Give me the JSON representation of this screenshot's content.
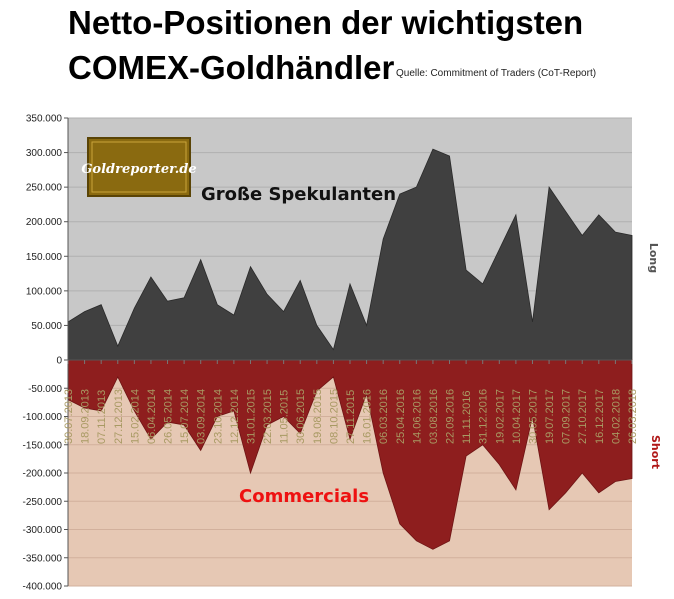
{
  "header": {
    "title_line1": "Netto-Positionen der wichtigsten",
    "title_line2": "COMEX-Goldhändler",
    "source": "Quelle: Commitment of Traders (CoT-Report)"
  },
  "logo": {
    "text": "Goldreporter.de"
  },
  "colors": {
    "long_plot_bg": "#c8c8c8",
    "long_area": "#404040",
    "short_plot_bg": "#e6c8b4",
    "short_area": "#8e1e1e",
    "short_label": "#b01818",
    "comm_label": "#ee1111",
    "x_tick": "#a89a63"
  },
  "chart_data": {
    "type": "area",
    "title": "Netto-Positionen der wichtigsten COMEX-Goldhändler",
    "subtitle": "Quelle: Commitment of Traders (CoT-Report)",
    "xlabel": "",
    "grid": true,
    "x_tick_labels": [
      "30.07.2013",
      "18.09.2013",
      "07.11.2013",
      "27.12.2013",
      "15.02.2014",
      "06.04.2014",
      "26.05.2014",
      "15.07.2014",
      "03.09.2014",
      "23.10.2014",
      "12.12.2014",
      "31.01.2015",
      "22.03.2015",
      "11.05.2015",
      "30.06.2015",
      "19.08.2015",
      "08.10.2015",
      "27.11.2015",
      "16.01.2016",
      "06.03.2016",
      "25.04.2016",
      "14.06.2016",
      "03.08.2016",
      "22.09.2016",
      "11.11.2016",
      "31.12.2016",
      "19.02.2017",
      "10.04.2017",
      "30.05.2017",
      "19.07.2017",
      "07.09.2017",
      "27.10.2017",
      "16.12.2017",
      "04.02.2018",
      "26.03.2018"
    ],
    "y_tick_labels": [
      "350.000",
      "300.000",
      "250.000",
      "200.000",
      "150.000",
      "100.000",
      "50.000",
      "0",
      "-50.000",
      "-100.000",
      "-150.000",
      "-200.000",
      "-250.000",
      "-300.000",
      "-350.000",
      "-400.000"
    ],
    "panels": [
      {
        "name": "Große Spekulanten",
        "side_label": "Long",
        "ylim": [
          0,
          350000
        ],
        "ticks": [
          0,
          50000,
          100000,
          150000,
          200000,
          250000,
          300000,
          350000
        ],
        "series": [
          {
            "name": "Große Spekulanten",
            "x": [
              "30.07.2013",
              "18.09.2013",
              "07.11.2013",
              "27.12.2013",
              "15.02.2014",
              "06.04.2014",
              "26.05.2014",
              "15.07.2014",
              "03.09.2014",
              "23.10.2014",
              "12.12.2014",
              "31.01.2015",
              "22.03.2015",
              "11.05.2015",
              "30.06.2015",
              "19.08.2015",
              "08.10.2015",
              "27.11.2015",
              "16.01.2016",
              "06.03.2016",
              "25.04.2016",
              "14.06.2016",
              "03.08.2016",
              "22.09.2016",
              "11.11.2016",
              "31.12.2016",
              "19.02.2017",
              "10.04.2017",
              "30.05.2017",
              "19.07.2017",
              "07.09.2017",
              "27.10.2017",
              "16.12.2017",
              "04.02.2018",
              "26.03.2018"
            ],
            "values": [
              55000,
              70000,
              80000,
              20000,
              75000,
              120000,
              85000,
              90000,
              145000,
              80000,
              65000,
              135000,
              95000,
              70000,
              115000,
              50000,
              15000,
              110000,
              50000,
              175000,
              240000,
              250000,
              305000,
              295000,
              130000,
              110000,
              160000,
              210000,
              55000,
              250000,
              215000,
              180000,
              210000,
              185000,
              180000
            ]
          }
        ]
      },
      {
        "name": "Commercials",
        "side_label": "Short",
        "ylim": [
          -400000,
          0
        ],
        "ticks": [
          -400000,
          -350000,
          -300000,
          -250000,
          -200000,
          -150000,
          -100000,
          -50000,
          0
        ],
        "series": [
          {
            "name": "Commercials",
            "x": [
              "30.07.2013",
              "18.09.2013",
              "07.11.2013",
              "27.12.2013",
              "15.02.2014",
              "06.04.2014",
              "26.05.2014",
              "15.07.2014",
              "03.09.2014",
              "23.10.2014",
              "12.12.2014",
              "31.01.2015",
              "22.03.2015",
              "11.05.2015",
              "30.06.2015",
              "19.08.2015",
              "08.10.2015",
              "27.11.2015",
              "16.01.2016",
              "06.03.2016",
              "25.04.2016",
              "14.06.2016",
              "03.08.2016",
              "22.09.2016",
              "11.11.2016",
              "31.12.2016",
              "19.02.2017",
              "10.04.2017",
              "30.05.2017",
              "19.07.2017",
              "07.09.2017",
              "27.10.2017",
              "16.12.2017",
              "04.02.2018",
              "26.03.2018"
            ],
            "values": [
              -70000,
              -85000,
              -90000,
              -30000,
              -90000,
              -140000,
              -110000,
              -115000,
              -160000,
              -100000,
              -90000,
              -200000,
              -115000,
              -100000,
              -130000,
              -55000,
              -30000,
              -140000,
              -60000,
              -200000,
              -290000,
              -320000,
              -335000,
              -320000,
              -170000,
              -150000,
              -185000,
              -230000,
              -100000,
              -265000,
              -235000,
              -200000,
              -235000,
              -215000,
              -210000
            ]
          }
        ]
      }
    ]
  }
}
